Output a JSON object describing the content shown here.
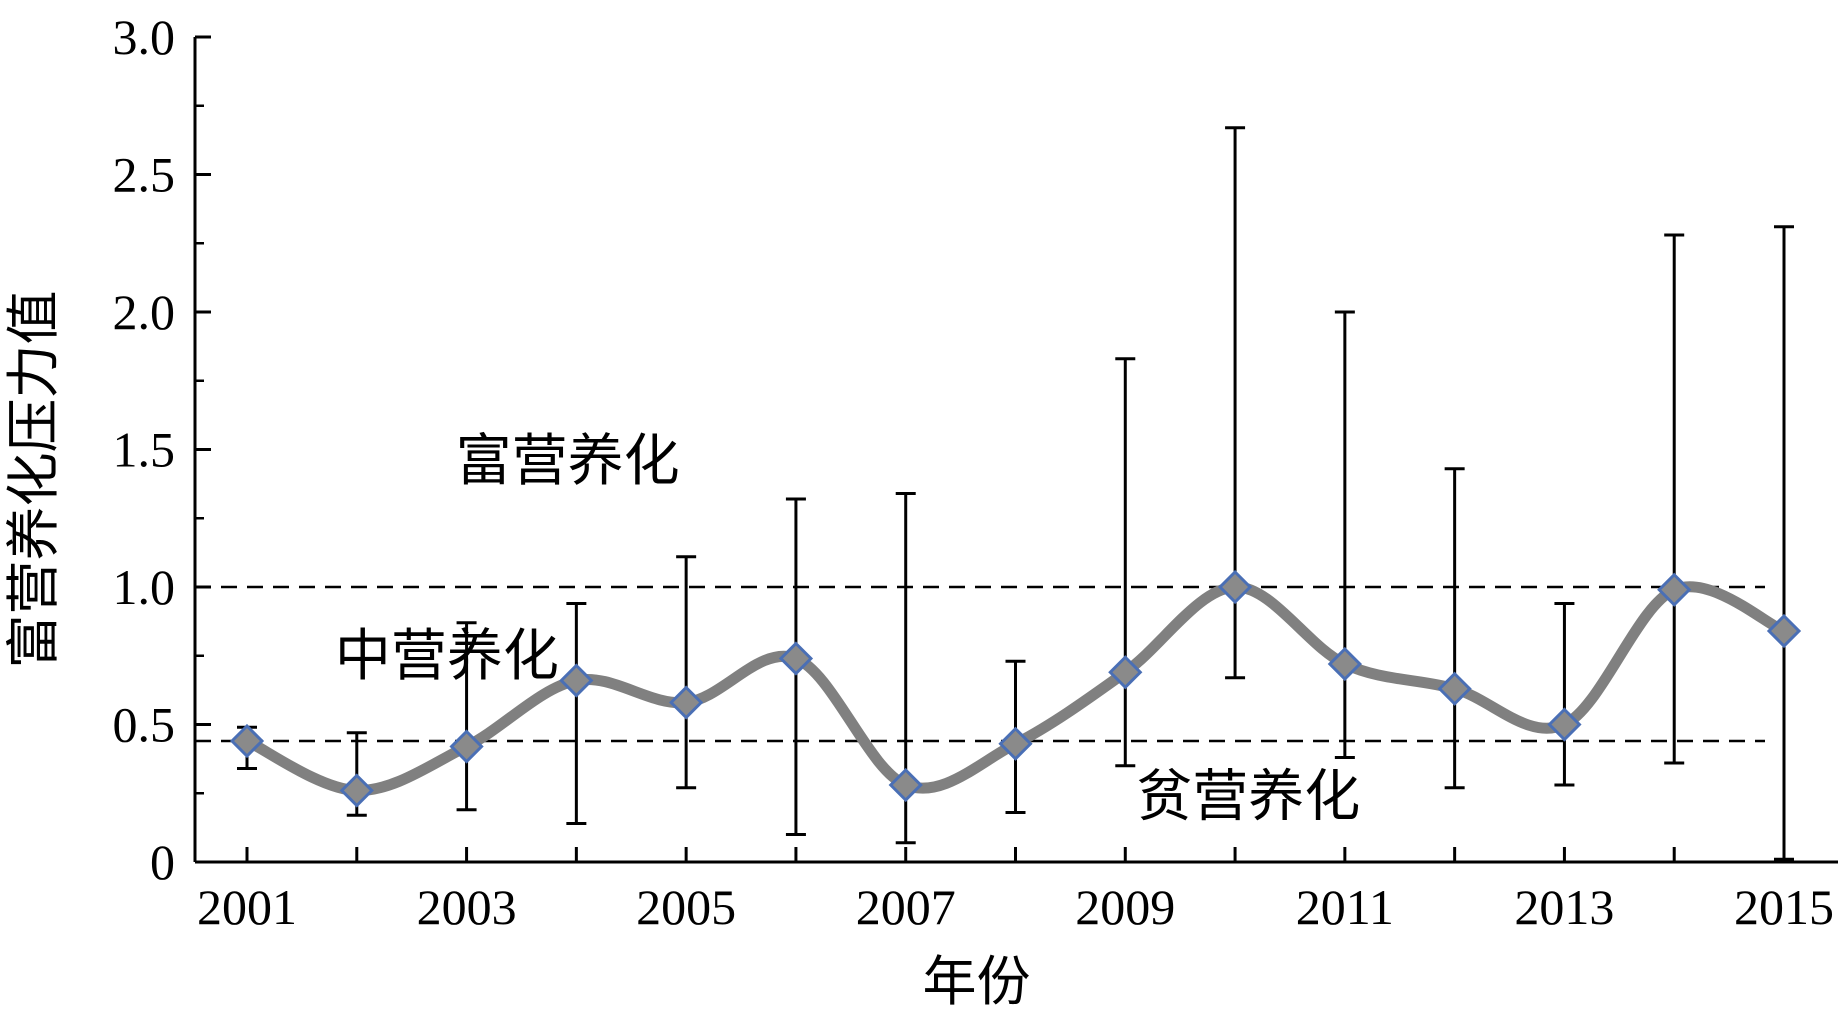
{
  "chart_data": {
    "type": "line",
    "title": "",
    "xlabel": "年份",
    "ylabel": "富营养化压力值",
    "x": [
      2001,
      2002,
      2003,
      2004,
      2005,
      2006,
      2007,
      2008,
      2009,
      2010,
      2011,
      2012,
      2013,
      2014,
      2015
    ],
    "x_tick_labels": [
      "2001",
      "2003",
      "2005",
      "2007",
      "2009",
      "2011",
      "2013",
      "2015"
    ],
    "y_tick_labels": [
      "0",
      "0.5",
      "1.0",
      "1.5",
      "2.0",
      "2.5",
      "3.0"
    ],
    "ylim": [
      0,
      3.0
    ],
    "xlim": [
      2001,
      2015.5
    ],
    "grid": false,
    "series": [
      {
        "values": [
          0.44,
          0.26,
          0.42,
          0.66,
          0.58,
          0.74,
          0.28,
          0.43,
          0.69,
          1.0,
          0.72,
          0.63,
          0.5,
          0.99,
          0.84
        ],
        "err_low": [
          0.34,
          0.17,
          0.19,
          0.14,
          0.27,
          0.1,
          0.07,
          0.18,
          0.35,
          0.67,
          0.38,
          0.27,
          0.28,
          0.36,
          0.01
        ],
        "err_high": [
          0.49,
          0.47,
          0.87,
          0.94,
          1.11,
          1.32,
          1.34,
          0.73,
          1.83,
          2.67,
          2.0,
          1.43,
          0.94,
          2.28,
          2.31
        ],
        "line_color": "#808080",
        "marker_color": "#8a8a8a",
        "marker_edge": "#4a6fb5"
      }
    ],
    "reference_lines": [
      {
        "y": 1.0,
        "style": "dashed"
      },
      {
        "y": 0.44,
        "style": "dashed"
      }
    ],
    "annotations": [
      {
        "text": "富营养化",
        "x": 2002.9,
        "y": 1.39
      },
      {
        "text": "中营养化",
        "x": 2001.8,
        "y": 0.68
      },
      {
        "text": "贫营养化",
        "x": 2009.1,
        "y": 0.17
      }
    ]
  }
}
